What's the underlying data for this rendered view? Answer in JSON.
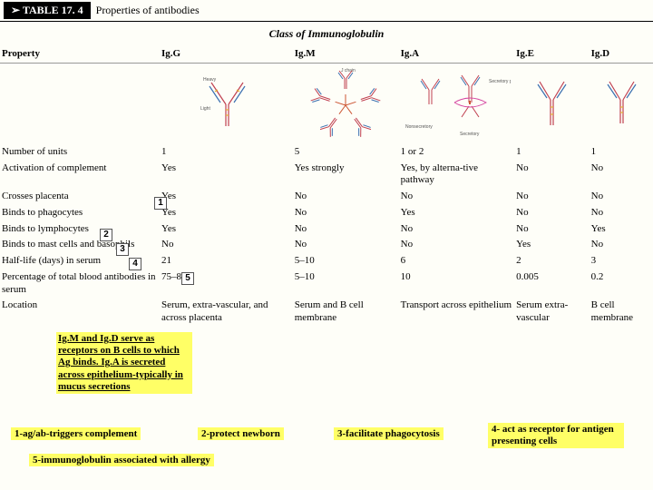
{
  "header": {
    "tab": "➢ TABLE 17. 4",
    "title": "Properties of antibodies"
  },
  "subtitle": "Class of Immunoglobulin",
  "columns": [
    "Property",
    "Ig.G",
    "Ig.M",
    "Ig.A",
    "Ig.E",
    "Ig.D"
  ],
  "diagram_labels": {
    "jchain": "J chain",
    "heavy": "Heavy",
    "light": "Light",
    "nonsec": "Nonsecretory",
    "sec": "Secretory",
    "secpiece": "Secretory piece"
  },
  "rows": [
    {
      "prop": "Number of units",
      "c": [
        "1",
        "5",
        "1 or 2",
        "1",
        "1"
      ]
    },
    {
      "prop": "Activation of complement",
      "c": [
        "Yes",
        "Yes strongly",
        "Yes, by alterna-tive pathway",
        "No",
        "No"
      ]
    },
    {
      "prop": "Crosses placenta",
      "c": [
        "Yes",
        "No",
        "No",
        "No",
        "No"
      ]
    },
    {
      "prop": "Binds to phagocytes",
      "c": [
        "Yes",
        "No",
        "Yes",
        "No",
        "No"
      ]
    },
    {
      "prop": "Binds to lymphocytes",
      "c": [
        "Yes",
        "No",
        "No",
        "No",
        "Yes"
      ]
    },
    {
      "prop": "Binds to mast cells and basophils",
      "c": [
        "No",
        "No",
        "No",
        "Yes",
        "No"
      ]
    },
    {
      "prop": "Half-life (days) in serum",
      "c": [
        "21",
        "5–10",
        "6",
        "2",
        "3"
      ]
    },
    {
      "prop": "Percentage of total blood antibodies in serum",
      "c": [
        "75–85",
        "5–10",
        "10",
        "0.005",
        "0.2"
      ]
    },
    {
      "prop": "Location",
      "c": [
        "Serum, extra-vascular, and across placenta",
        "Serum and B cell membrane",
        "Transport across epithelium",
        "Serum extra-vascular",
        "B cell membrane"
      ]
    }
  ],
  "markers": {
    "m1": "1",
    "m2": "2",
    "m3": "3",
    "m4": "4",
    "m5": "5"
  },
  "note_main": "Ig.M and Ig.D serve as receptors on B cells to which Ag binds. Ig.A is secreted across epithelium-typically in mucus secretions",
  "footnotes": {
    "f1": "1-ag/ab-triggers complement",
    "f2": "2-protect newborn",
    "f3": "3-facilitate phagocytosis",
    "f4": "4- act as receptor for antigen presenting cells",
    "f5": "5-immunoglobulin associated with allergy"
  },
  "colors": {
    "highlight": "#ffff66",
    "bg": "#fefef8"
  },
  "antibody": {
    "heavy": "#c04050",
    "light": "#3a6fb0",
    "disulf": "#e4b030",
    "jchain": "#cc5533",
    "secpiece": "#d545a0"
  }
}
